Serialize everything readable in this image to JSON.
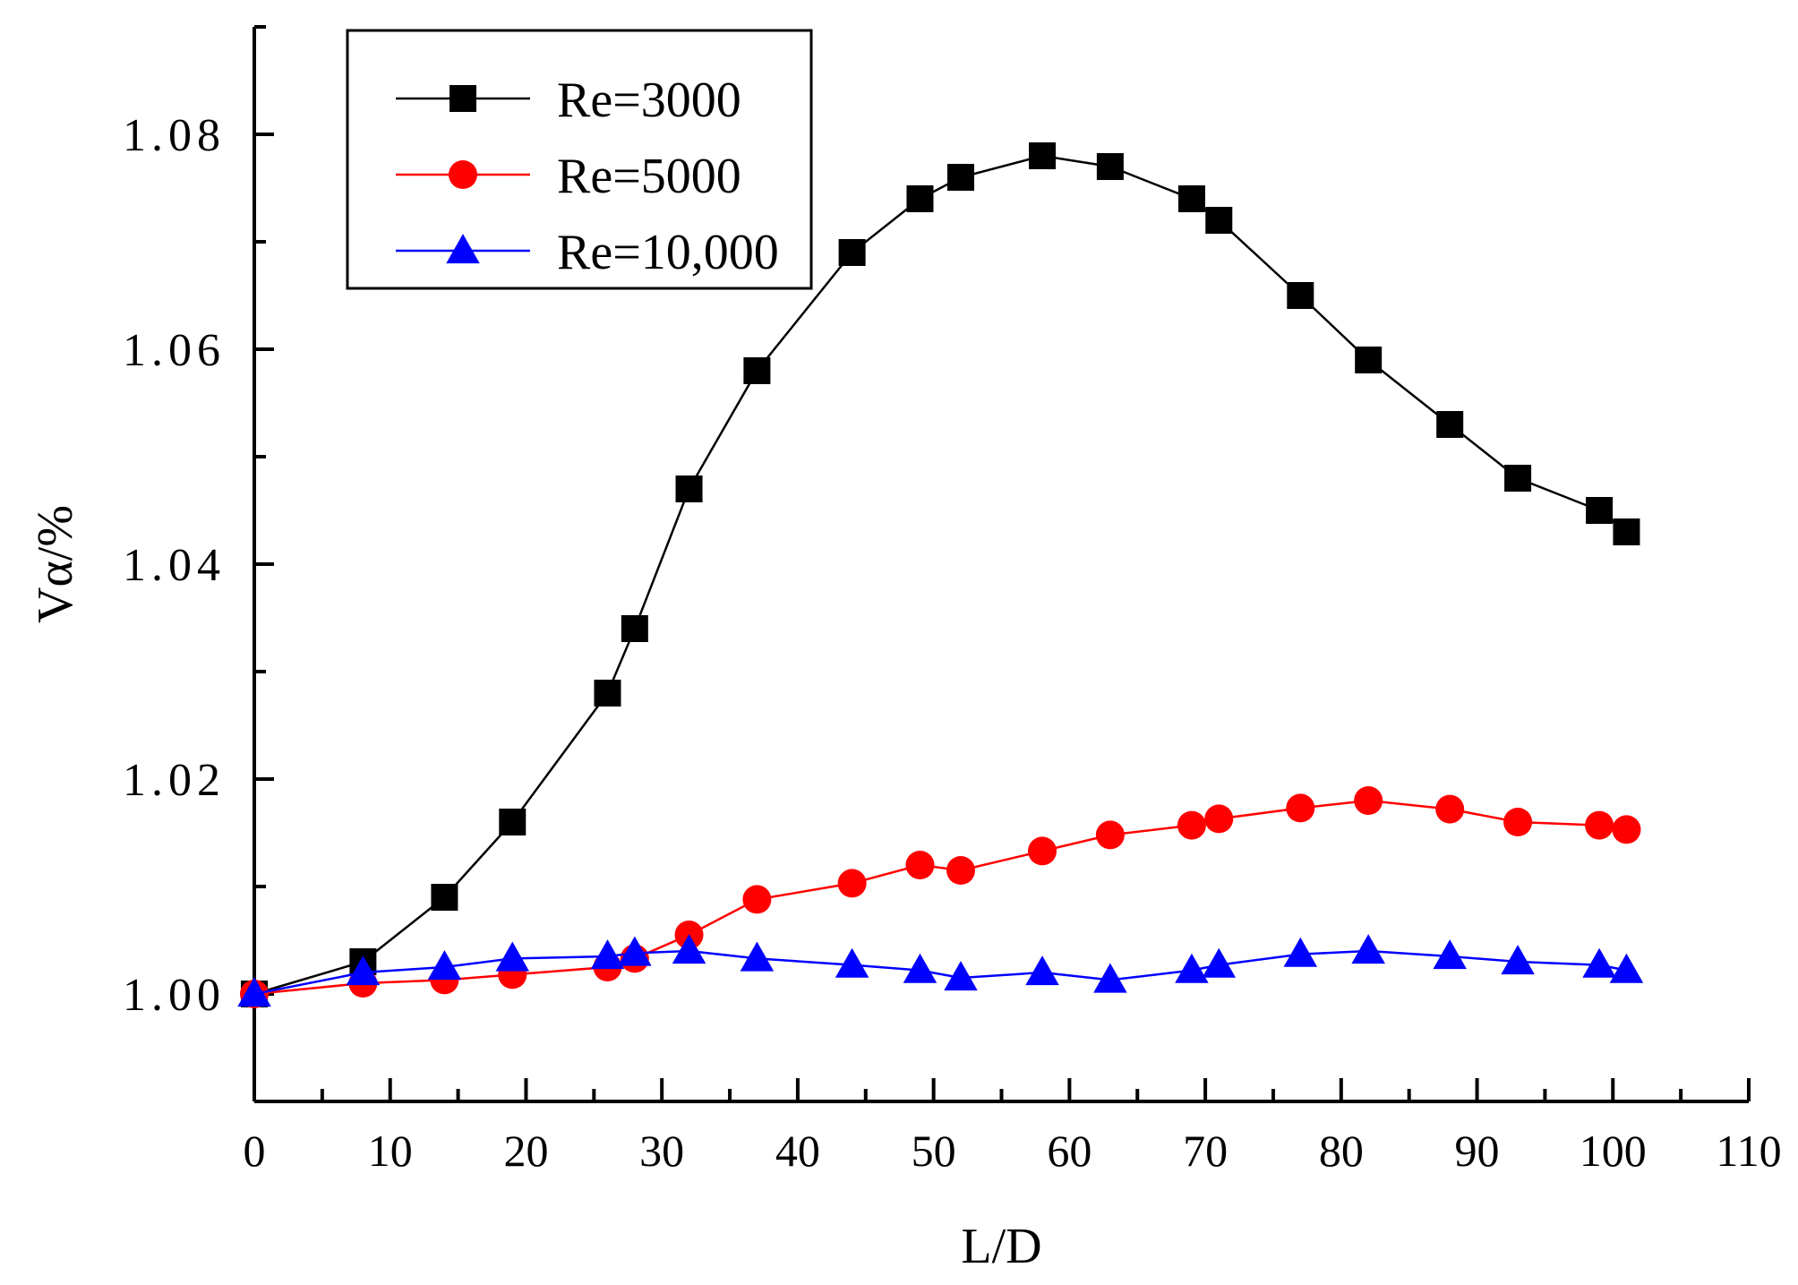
{
  "chart_data": {
    "type": "line",
    "title": "",
    "xlabel": "L/D",
    "ylabel": "Vα/%",
    "xlim": [
      0,
      110
    ],
    "ylim": [
      0.99,
      1.09
    ],
    "x_ticks": [
      0,
      10,
      20,
      30,
      40,
      50,
      60,
      70,
      80,
      90,
      100,
      110
    ],
    "x_tick_labels": [
      "0",
      "10",
      "20",
      "30",
      "40",
      "50",
      "60",
      "70",
      "80",
      "90",
      "100",
      "110"
    ],
    "y_ticks": [
      1.0,
      1.02,
      1.04,
      1.06,
      1.08
    ],
    "y_tick_labels": [
      "1.00",
      "1.02",
      "1.04",
      "1.06",
      "1.08"
    ],
    "grid": false,
    "legend_position": "top-left",
    "series": [
      {
        "name": "Re=3000",
        "color": "#000000",
        "marker": "square",
        "x": [
          0,
          8,
          14,
          19,
          26,
          28,
          32,
          37,
          44,
          49,
          52,
          58,
          63,
          69,
          71,
          77,
          82,
          88,
          93,
          99,
          101
        ],
        "values": [
          1.0,
          1.003,
          1.009,
          1.016,
          1.028,
          1.034,
          1.047,
          1.058,
          1.069,
          1.074,
          1.076,
          1.078,
          1.077,
          1.074,
          1.072,
          1.065,
          1.059,
          1.053,
          1.048,
          1.045,
          1.043
        ]
      },
      {
        "name": "Re=5000",
        "color": "#ff0000",
        "marker": "circle",
        "x": [
          0,
          8,
          14,
          19,
          26,
          28,
          32,
          37,
          44,
          49,
          52,
          58,
          63,
          69,
          71,
          77,
          82,
          88,
          93,
          99,
          101
        ],
        "values": [
          1.0,
          1.001,
          1.0013,
          1.0018,
          1.0025,
          1.0033,
          1.0055,
          1.0088,
          1.0103,
          1.012,
          1.0115,
          1.0133,
          1.0148,
          1.0157,
          1.0163,
          1.0173,
          1.018,
          1.0172,
          1.016,
          1.0157,
          1.0153
        ]
      },
      {
        "name": "Re=10,000",
        "color": "#0000ff",
        "marker": "triangle",
        "x": [
          0,
          8,
          14,
          19,
          26,
          28,
          32,
          37,
          44,
          49,
          52,
          58,
          63,
          69,
          71,
          77,
          82,
          88,
          93,
          99,
          101
        ],
        "values": [
          1.0,
          1.002,
          1.0025,
          1.0033,
          1.0035,
          1.0038,
          1.004,
          1.0033,
          1.0027,
          1.0022,
          1.0015,
          1.002,
          1.0013,
          1.0022,
          1.0027,
          1.0037,
          1.004,
          1.0035,
          1.003,
          1.0027,
          1.0022
        ]
      }
    ]
  }
}
